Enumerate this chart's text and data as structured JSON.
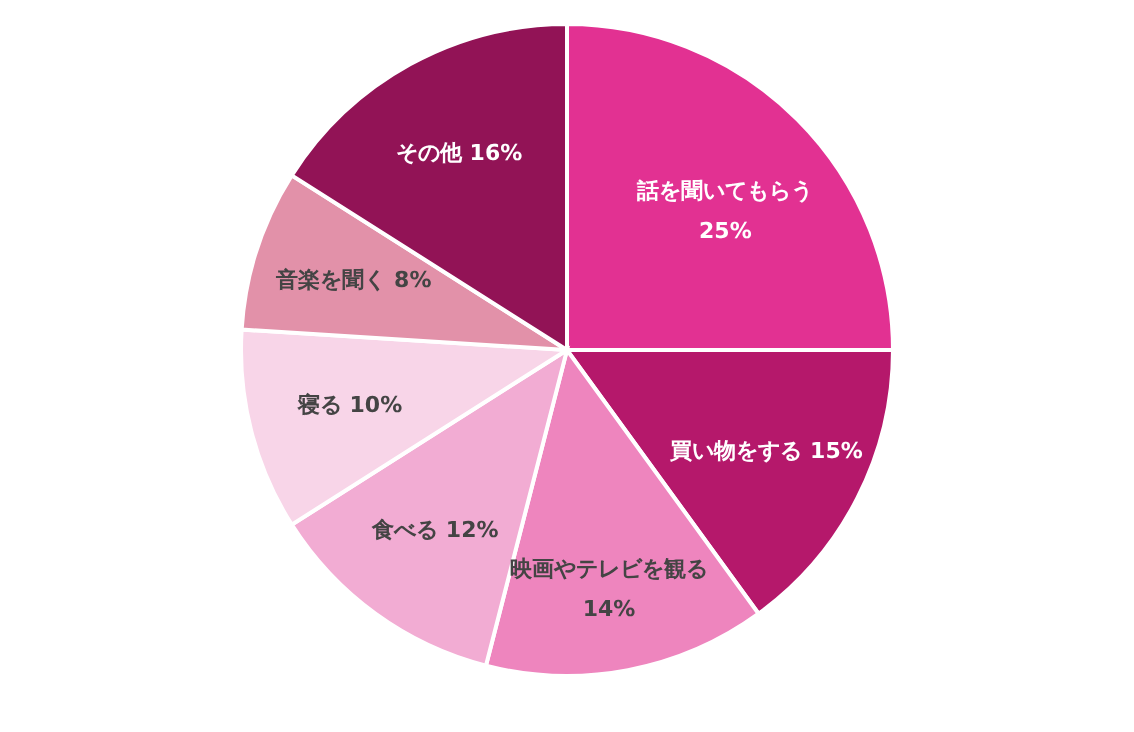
{
  "chart_data": {
    "type": "pie",
    "categories": [
      "話を聞いてもらう",
      "買い物をする",
      "映画やテレビを観る",
      "食べる",
      "寝る",
      "音楽を聞く",
      "その他"
    ],
    "values": [
      25,
      15,
      14,
      12,
      10,
      8,
      16
    ],
    "value_labels": [
      "25%",
      "15%",
      "14%",
      "12%",
      "10%",
      "8%",
      "16%"
    ],
    "colors": [
      "#e23192",
      "#b5186b",
      "#ee85be",
      "#f2acd3",
      "#f8d5e8",
      "#e291a9",
      "#921356"
    ],
    "legend": false
  }
}
